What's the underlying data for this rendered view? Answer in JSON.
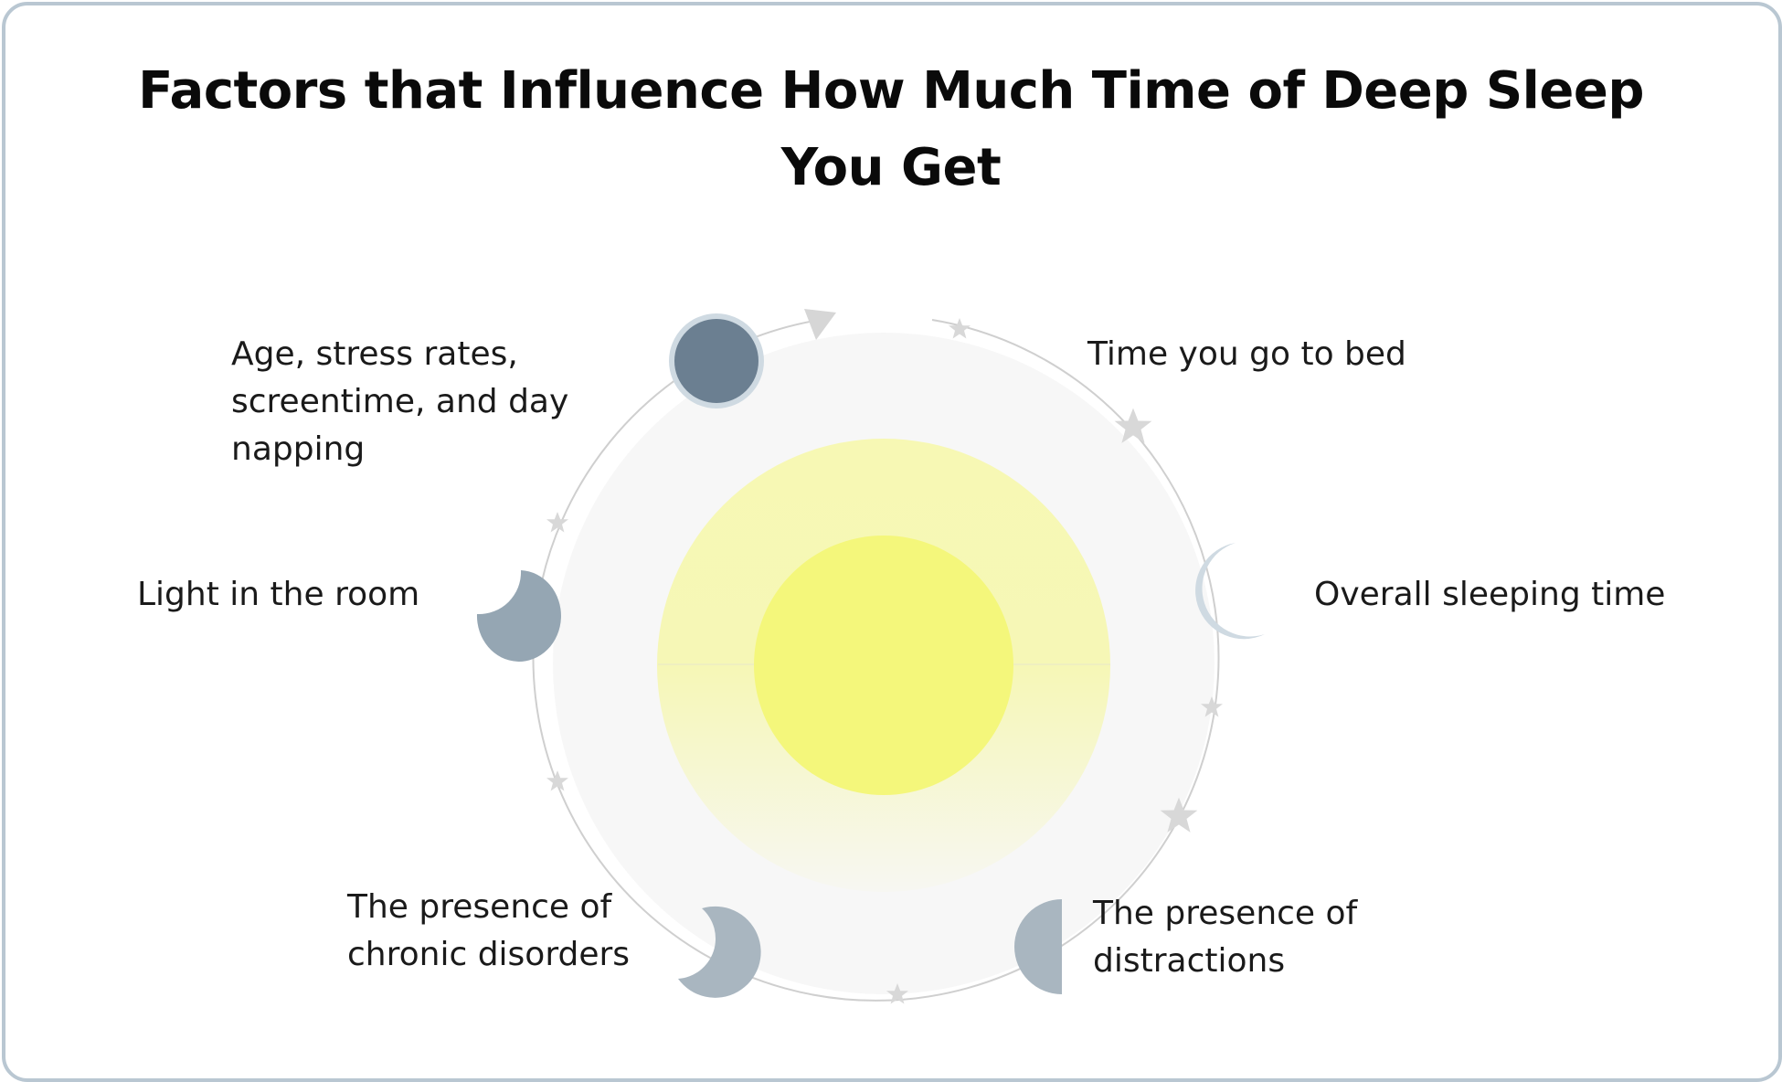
{
  "title": "Factors that Influence How Much Time of Deep Sleep You Get",
  "factors": [
    {
      "text": "Time you go to bed",
      "icon": "crescent-moon-icon"
    },
    {
      "text": "Overall sleeping time",
      "icon": "crescent-moon-icon"
    },
    {
      "text": "The presence of\ndistractions",
      "icon": "half-moon-icon"
    },
    {
      "text": "The presence of\nchronic disorders",
      "icon": "crescent-moon-icon"
    },
    {
      "text": "Light in the room",
      "icon": "gibbous-moon-icon"
    },
    {
      "text": "Age, stress rates,\nscreentime, and day\nnapping",
      "icon": "full-moon-icon"
    }
  ],
  "colors": {
    "border": "#b9c7d2",
    "sun_core": "#f4f77b",
    "sun_glow": "#f7f8b4",
    "disc": "#f7f7f7",
    "moon_dark": "#6b7f91",
    "moon_mid": "#95a6b3",
    "moon_light": "#cfdae2",
    "moon_grey": "#d7d7d7",
    "star": "#d8d8d8"
  }
}
